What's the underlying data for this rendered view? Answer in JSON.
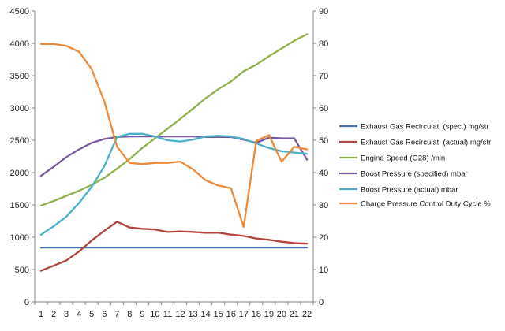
{
  "chart_data": {
    "type": "line",
    "title": "",
    "xlabel": "",
    "ylabel": "",
    "y2label": "",
    "categories": [
      "1",
      "2",
      "3",
      "4",
      "5",
      "6",
      "7",
      "8",
      "9",
      "10",
      "11",
      "12",
      "13",
      "14",
      "15",
      "16",
      "17",
      "18",
      "19",
      "20",
      "21",
      "22"
    ],
    "ylim": [
      0,
      4500
    ],
    "y2lim": [
      0,
      90
    ],
    "yticks": [
      "0",
      "500",
      "1000",
      "1500",
      "2000",
      "2500",
      "3000",
      "3500",
      "4000",
      "4500"
    ],
    "y2ticks": [
      "0",
      "10",
      "20",
      "30",
      "40",
      "50",
      "60",
      "70",
      "80",
      "90"
    ],
    "grid": false,
    "legend_position": "right",
    "series": [
      {
        "name": "Exhaust Gas Recirculat. (spec.)  mg/str",
        "axis": "left",
        "color": "#4a72b0",
        "values": [
          840,
          840,
          840,
          840,
          840,
          840,
          840,
          840,
          840,
          840,
          840,
          840,
          840,
          840,
          840,
          840,
          840,
          840,
          840,
          840,
          840,
          840
        ]
      },
      {
        "name": "Exhaust Gas Recirculat. (actual)  mg/str",
        "axis": "left",
        "color": "#b2433f",
        "values": [
          480,
          560,
          640,
          780,
          950,
          1100,
          1240,
          1150,
          1130,
          1120,
          1080,
          1090,
          1080,
          1070,
          1070,
          1040,
          1020,
          980,
          960,
          930,
          910,
          900
        ]
      },
      {
        "name": "Engine Speed (G28)  /min",
        "axis": "left",
        "color": "#8fb04c",
        "values": [
          1490,
          1560,
          1640,
          1720,
          1810,
          1920,
          2060,
          2210,
          2380,
          2530,
          2680,
          2830,
          2990,
          3150,
          3290,
          3410,
          3570,
          3670,
          3800,
          3920,
          4040,
          4140
        ]
      },
      {
        "name": "Boost Pressure (specified)  mbar",
        "axis": "left",
        "color": "#7a5a9c",
        "values": [
          1950,
          2090,
          2240,
          2360,
          2460,
          2520,
          2550,
          2560,
          2560,
          2560,
          2560,
          2560,
          2560,
          2550,
          2550,
          2550,
          2510,
          2460,
          2540,
          2530,
          2530,
          2200
        ]
      },
      {
        "name": "Boost Pressure (actual)  mbar",
        "axis": "left",
        "color": "#4bb0c6",
        "values": [
          1040,
          1170,
          1320,
          1530,
          1780,
          2100,
          2550,
          2600,
          2600,
          2560,
          2500,
          2480,
          2510,
          2560,
          2570,
          2560,
          2520,
          2450,
          2380,
          2330,
          2310,
          2290
        ]
      },
      {
        "name": "Charge Pressure Control Duty Cycle  %",
        "axis": "right",
        "color": "#ed8a3a",
        "values": [
          79.8,
          79.8,
          79.2,
          77.4,
          72.0,
          62.0,
          48.0,
          43.0,
          42.6,
          43.0,
          43.0,
          43.4,
          41.0,
          37.6,
          36.0,
          35.2,
          23.2,
          49.8,
          51.6,
          43.4,
          48.0,
          47.2
        ]
      }
    ]
  }
}
